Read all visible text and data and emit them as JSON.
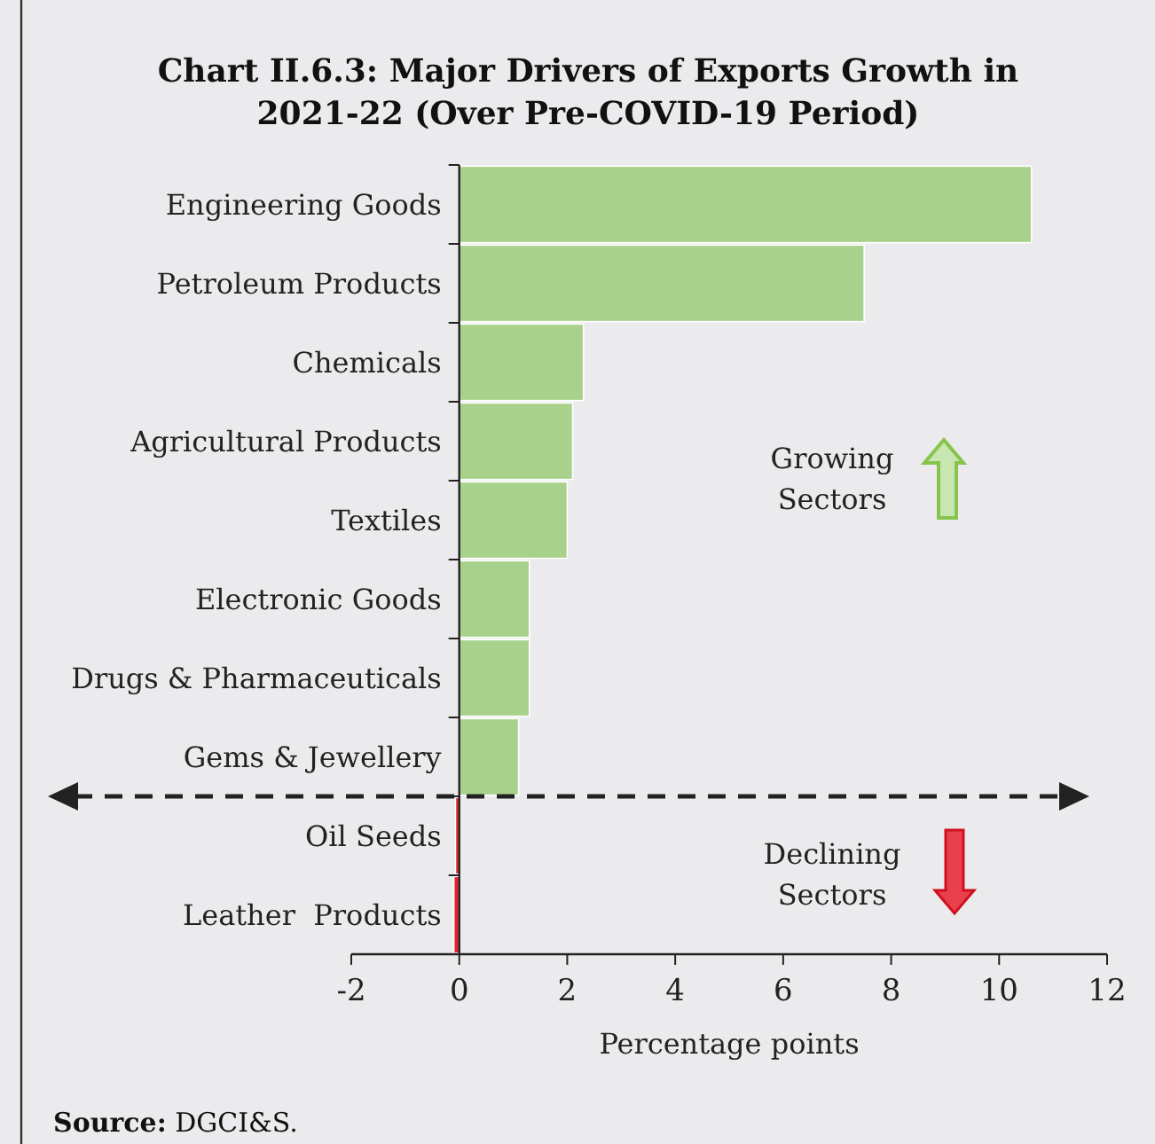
{
  "chart_data": {
    "type": "bar",
    "orientation": "horizontal",
    "title": "Chart II.6.3: Major Drivers of Exports Growth in 2021-22 (Over Pre-COVID-19 Period)",
    "categories": [
      "Engineering Goods",
      "Petroleum Products",
      "Chemicals",
      "Agricultural Products",
      "Textiles",
      "Electronic Goods",
      "Drugs & Pharmaceuticals",
      "Gems & Jewellery",
      "Oil Seeds",
      "Leather  Products"
    ],
    "values": [
      10.6,
      7.5,
      2.3,
      2.1,
      2.0,
      1.3,
      1.3,
      1.1,
      -0.07,
      -0.1
    ],
    "colors": [
      "#a8d28c",
      "#a8d28c",
      "#a8d28c",
      "#a8d28c",
      "#a8d28c",
      "#a8d28c",
      "#a8d28c",
      "#a8d28c",
      "#e8202a",
      "#e8202a"
    ],
    "xlim": [
      -2,
      12
    ],
    "xticks": [
      -2,
      0,
      2,
      4,
      6,
      8,
      10,
      12
    ],
    "xlabel": "Percentage points",
    "annotations": [
      "Growing Sectors",
      "Declining Sectors",
      "Source: DGCI&S."
    ]
  }
}
